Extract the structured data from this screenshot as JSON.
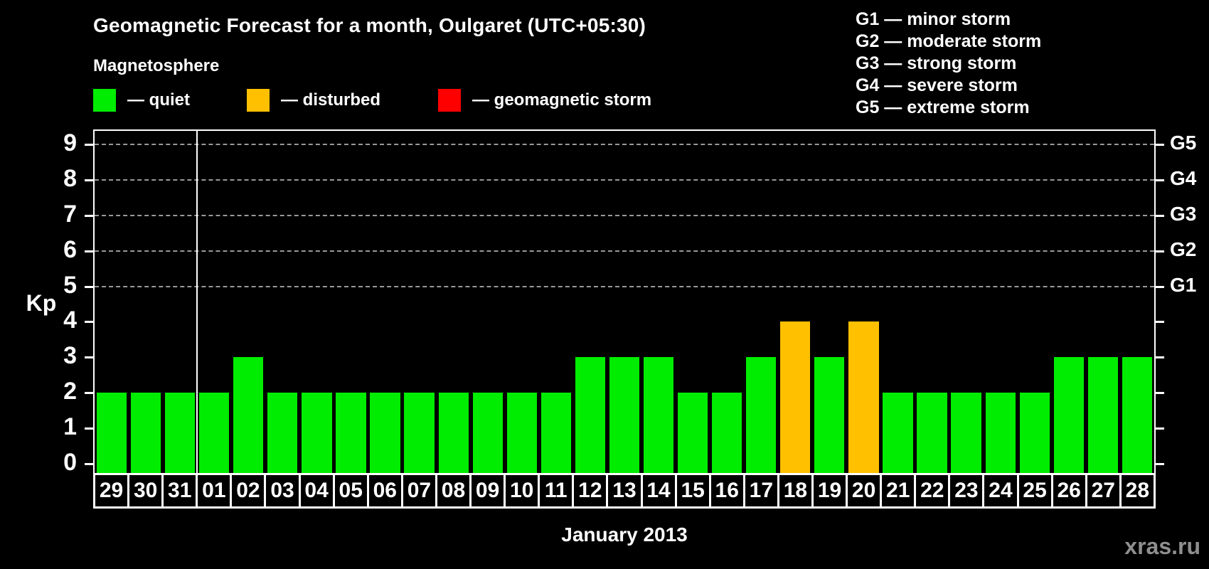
{
  "legend": {
    "heading": "Magnetosphere",
    "items": [
      {
        "key": "quiet",
        "label": "— quiet",
        "color": "#00EC00"
      },
      {
        "key": "disturbed",
        "label": "— disturbed",
        "color": "#FFC000"
      },
      {
        "key": "storm",
        "label": "— geomagnetic storm",
        "color": "#FF0000"
      }
    ]
  },
  "g_legend": [
    "G1 — minor storm",
    "G2 — moderate storm",
    "G3 — strong storm",
    "G4 — severe storm",
    "G5 — extreme storm"
  ],
  "chart_data": {
    "type": "bar",
    "title": "Geomagnetic Forecast for a month, Oulgaret (UTC+05:30)",
    "xlabel": "January 2013",
    "ylabel": "Kp",
    "ylim": [
      0,
      9
    ],
    "yticks": [
      0,
      1,
      2,
      3,
      4,
      5,
      6,
      7,
      8,
      9
    ],
    "grid": "dashed horizontal lines at G1-G5 levels only",
    "legend_position": "top-left",
    "g_levels": [
      {
        "label": "G1",
        "kp": 5
      },
      {
        "label": "G2",
        "kp": 6
      },
      {
        "label": "G3",
        "kp": 7
      },
      {
        "label": "G4",
        "kp": 8
      },
      {
        "label": "G5",
        "kp": 9
      }
    ],
    "prev_month_day_count": 3,
    "categories": [
      "29",
      "30",
      "31",
      "01",
      "02",
      "03",
      "04",
      "05",
      "06",
      "07",
      "08",
      "09",
      "10",
      "11",
      "12",
      "13",
      "14",
      "15",
      "16",
      "17",
      "18",
      "19",
      "20",
      "21",
      "22",
      "23",
      "24",
      "25",
      "26",
      "27",
      "28"
    ],
    "values": [
      2,
      2,
      2,
      2,
      3,
      2,
      2,
      2,
      2,
      2,
      2,
      2,
      2,
      2,
      3,
      3,
      3,
      2,
      2,
      3,
      4,
      3,
      4,
      2,
      2,
      2,
      2,
      2,
      3,
      3,
      3
    ],
    "statuses": [
      "quiet",
      "quiet",
      "quiet",
      "quiet",
      "quiet",
      "quiet",
      "quiet",
      "quiet",
      "quiet",
      "quiet",
      "quiet",
      "quiet",
      "quiet",
      "quiet",
      "quiet",
      "quiet",
      "quiet",
      "quiet",
      "quiet",
      "quiet",
      "disturbed",
      "quiet",
      "disturbed",
      "quiet",
      "quiet",
      "quiet",
      "quiet",
      "quiet",
      "quiet",
      "quiet",
      "quiet"
    ],
    "colors": {
      "quiet": "#00EC00",
      "disturbed": "#FFC000",
      "storm": "#FF0000"
    }
  },
  "footer": {
    "watermark": "xras.ru"
  }
}
